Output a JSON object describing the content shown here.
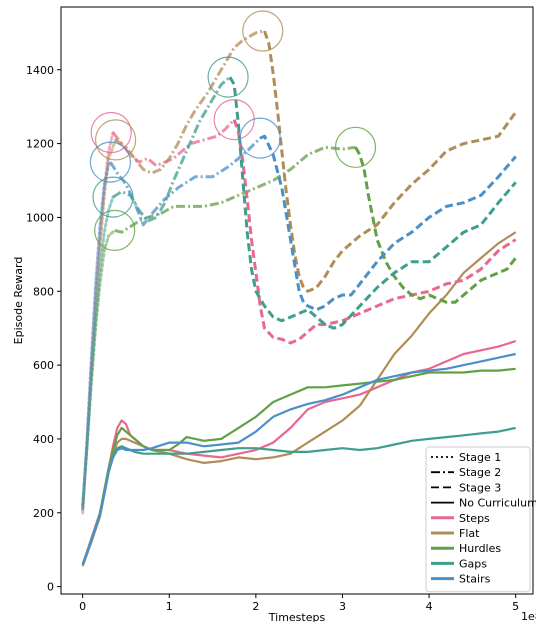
{
  "chart_data": {
    "type": "line",
    "xlabel": "Timesteps",
    "ylabel": "Episode Reward",
    "x_scale_label": "1e8",
    "xlim": [
      -0.25,
      5.2
    ],
    "ylim": [
      -20,
      1570
    ],
    "x_ticks": [
      0,
      1,
      2,
      3,
      4,
      5
    ],
    "y_ticks": [
      0,
      200,
      400,
      600,
      800,
      1000,
      1200,
      1400
    ],
    "x_tick_labels": [
      "0",
      "1",
      "2",
      "3",
      "4",
      "5"
    ],
    "y_tick_labels": [
      "0",
      "200",
      "400",
      "600",
      "800",
      "1000",
      "1200",
      "1400"
    ],
    "grid": false,
    "legend_position": "bottom-right",
    "legend": {
      "styles": [
        {
          "label": "Stage 1",
          "dash": "dotted"
        },
        {
          "label": "Stage 2",
          "dash": "dashdot"
        },
        {
          "label": "Stage 3",
          "dash": "dashed"
        },
        {
          "label": "No Curriculum",
          "dash": "solid"
        }
      ],
      "colors": [
        {
          "label": "Steps",
          "color": "#e8688e"
        },
        {
          "label": "Flat",
          "color": "#b08d57"
        },
        {
          "label": "Hurdles",
          "color": "#62a046"
        },
        {
          "label": "Gaps",
          "color": "#3f9e8e"
        },
        {
          "label": "Stairs",
          "color": "#4b8fc8"
        }
      ]
    },
    "series": [
      {
        "terrain": "Steps",
        "stage": 1,
        "color": "#e8688e",
        "x": [
          0,
          0.05,
          0.1,
          0.15,
          0.2,
          0.25,
          0.3,
          0.35
        ],
        "y": [
          200,
          390,
          600,
          790,
          950,
          1080,
          1180,
          1230
        ]
      },
      {
        "terrain": "Flat",
        "stage": 1,
        "color": "#b08d57",
        "x": [
          0,
          0.05,
          0.1,
          0.15,
          0.2,
          0.25,
          0.3,
          0.38
        ],
        "y": [
          210,
          380,
          570,
          760,
          920,
          1060,
          1160,
          1210
        ]
      },
      {
        "terrain": "Hurdles",
        "stage": 1,
        "color": "#62a046",
        "x": [
          0,
          0.05,
          0.1,
          0.15,
          0.2,
          0.25,
          0.3,
          0.37
        ],
        "y": [
          220,
          380,
          550,
          700,
          820,
          910,
          950,
          965
        ]
      },
      {
        "terrain": "Gaps",
        "stage": 1,
        "color": "#3f9e8e",
        "x": [
          0,
          0.05,
          0.1,
          0.15,
          0.2,
          0.25,
          0.3,
          0.35
        ],
        "y": [
          220,
          380,
          560,
          720,
          860,
          960,
          1020,
          1055
        ]
      },
      {
        "terrain": "Stairs",
        "stage": 1,
        "color": "#4b8fc8",
        "x": [
          0,
          0.05,
          0.1,
          0.15,
          0.2,
          0.25,
          0.3,
          0.32
        ],
        "y": [
          210,
          400,
          620,
          820,
          980,
          1090,
          1140,
          1150
        ]
      },
      {
        "terrain": "Steps",
        "stage": 2,
        "color": "#e8688e",
        "x": [
          0.35,
          0.45,
          0.55,
          0.65,
          0.75,
          0.85,
          0.95,
          1.05,
          1.15,
          1.25,
          1.4,
          1.55,
          1.65,
          1.75
        ],
        "y": [
          1230,
          1200,
          1170,
          1150,
          1160,
          1140,
          1150,
          1160,
          1180,
          1200,
          1210,
          1220,
          1240,
          1265
        ]
      },
      {
        "terrain": "Flat",
        "stage": 2,
        "color": "#b08d57",
        "x": [
          0.38,
          0.5,
          0.6,
          0.7,
          0.8,
          0.9,
          1.0,
          1.1,
          1.2,
          1.3,
          1.45,
          1.6,
          1.75,
          1.85,
          2.0,
          2.1
        ],
        "y": [
          1210,
          1190,
          1160,
          1130,
          1120,
          1130,
          1160,
          1200,
          1250,
          1290,
          1340,
          1400,
          1460,
          1480,
          1500,
          1505
        ]
      },
      {
        "terrain": "Hurdles",
        "stage": 2,
        "color": "#62a046",
        "x": [
          0.37,
          0.45,
          0.55,
          0.65,
          0.75,
          0.9,
          1.05,
          1.2,
          1.4,
          1.6,
          1.8,
          2.0,
          2.2,
          2.4,
          2.6,
          2.8,
          3.0,
          3.15
        ],
        "y": [
          965,
          960,
          975,
          990,
          1000,
          1010,
          1030,
          1030,
          1030,
          1040,
          1060,
          1080,
          1100,
          1130,
          1170,
          1190,
          1185,
          1190
        ]
      },
      {
        "terrain": "Gaps",
        "stage": 2,
        "color": "#3f9e8e",
        "x": [
          0.35,
          0.45,
          0.55,
          0.65,
          0.75,
          0.85,
          0.95,
          1.05,
          1.2,
          1.35,
          1.5,
          1.6,
          1.7
        ],
        "y": [
          1055,
          1070,
          1060,
          1020,
          990,
          1000,
          1040,
          1100,
          1180,
          1260,
          1320,
          1360,
          1380
        ]
      },
      {
        "terrain": "Stairs",
        "stage": 2,
        "color": "#4b8fc8",
        "x": [
          0.32,
          0.4,
          0.5,
          0.6,
          0.7,
          0.8,
          0.95,
          1.1,
          1.3,
          1.5,
          1.7,
          1.9,
          2.05
        ],
        "y": [
          1150,
          1120,
          1090,
          1040,
          980,
          1010,
          1050,
          1080,
          1110,
          1110,
          1140,
          1180,
          1215
        ]
      },
      {
        "terrain": "Steps",
        "stage": 3,
        "color": "#e8688e",
        "x": [
          1.75,
          1.8,
          1.85,
          1.9,
          1.95,
          2.0,
          2.05,
          2.1,
          2.2,
          2.3,
          2.4,
          2.5,
          2.6,
          2.7,
          2.8,
          3.0,
          3.2,
          3.4,
          3.6,
          3.8,
          4.0,
          4.2,
          4.4,
          4.6,
          4.8,
          5.0
        ],
        "y": [
          1265,
          1230,
          1150,
          1050,
          940,
          850,
          760,
          700,
          675,
          670,
          660,
          670,
          690,
          710,
          710,
          720,
          740,
          760,
          780,
          790,
          800,
          820,
          830,
          860,
          910,
          940
        ]
      },
      {
        "terrain": "Flat",
        "stage": 3,
        "color": "#b08d57",
        "x": [
          2.1,
          2.15,
          2.2,
          2.25,
          2.3,
          2.35,
          2.4,
          2.45,
          2.5,
          2.55,
          2.6,
          2.7,
          2.8,
          2.9,
          3.0,
          3.2,
          3.4,
          3.6,
          3.8,
          4.0,
          4.2,
          4.4,
          4.6,
          4.8,
          5.0
        ],
        "y": [
          1505,
          1470,
          1390,
          1290,
          1180,
          1070,
          980,
          900,
          840,
          810,
          800,
          810,
          840,
          880,
          910,
          950,
          980,
          1040,
          1090,
          1130,
          1180,
          1200,
          1210,
          1220,
          1285
        ]
      },
      {
        "terrain": "Hurdles",
        "stage": 3,
        "color": "#62a046",
        "x": [
          3.15,
          3.2,
          3.25,
          3.3,
          3.35,
          3.4,
          3.5,
          3.6,
          3.7,
          3.8,
          3.9,
          4.0,
          4.1,
          4.2,
          4.3,
          4.4,
          4.5,
          4.6,
          4.7,
          4.8,
          4.9,
          5.0
        ],
        "y": [
          1190,
          1170,
          1130,
          1060,
          1000,
          940,
          880,
          840,
          810,
          790,
          780,
          790,
          780,
          770,
          770,
          790,
          810,
          830,
          840,
          850,
          860,
          890
        ]
      },
      {
        "terrain": "Gaps",
        "stage": 3,
        "color": "#3f9e8e",
        "x": [
          1.7,
          1.75,
          1.8,
          1.85,
          1.9,
          1.95,
          2.0,
          2.1,
          2.2,
          2.3,
          2.4,
          2.5,
          2.6,
          2.7,
          2.8,
          2.9,
          3.0,
          3.2,
          3.4,
          3.6,
          3.8,
          4.0,
          4.2,
          4.4,
          4.6,
          4.8,
          5.0
        ],
        "y": [
          1380,
          1360,
          1250,
          1100,
          960,
          860,
          800,
          760,
          730,
          720,
          730,
          740,
          750,
          730,
          710,
          700,
          710,
          760,
          810,
          850,
          880,
          880,
          920,
          960,
          980,
          1040,
          1095
        ]
      },
      {
        "terrain": "Stairs",
        "stage": 3,
        "color": "#4b8fc8",
        "x": [
          2.05,
          2.1,
          2.2,
          2.3,
          2.35,
          2.4,
          2.45,
          2.5,
          2.55,
          2.6,
          2.7,
          2.8,
          2.9,
          3.0,
          3.1,
          3.2,
          3.4,
          3.6,
          3.8,
          4.0,
          4.2,
          4.4,
          4.6,
          4.8,
          5.0
        ],
        "y": [
          1215,
          1220,
          1170,
          1080,
          1010,
          940,
          870,
          800,
          770,
          760,
          750,
          760,
          780,
          790,
          790,
          820,
          880,
          930,
          960,
          1000,
          1030,
          1040,
          1060,
          1110,
          1165
        ]
      },
      {
        "terrain": "Steps",
        "stage": 0,
        "color": "#e8688e",
        "x": [
          0,
          0.1,
          0.2,
          0.25,
          0.3,
          0.35,
          0.4,
          0.45,
          0.5,
          0.55,
          0.6,
          0.7,
          0.8,
          1.0,
          1.2,
          1.4,
          1.6,
          1.8,
          2.0,
          2.2,
          2.4,
          2.6,
          2.8,
          3.0,
          3.2,
          3.4,
          3.6,
          3.8,
          4.0,
          4.2,
          4.4,
          4.6,
          4.8,
          5.0
        ],
        "y": [
          60,
          130,
          200,
          260,
          320,
          380,
          430,
          450,
          440,
          410,
          400,
          380,
          370,
          370,
          360,
          355,
          350,
          360,
          370,
          390,
          430,
          480,
          500,
          510,
          520,
          540,
          560,
          580,
          590,
          610,
          630,
          640,
          650,
          665
        ]
      },
      {
        "terrain": "Flat",
        "stage": 0,
        "color": "#b08d57",
        "x": [
          0,
          0.1,
          0.2,
          0.25,
          0.3,
          0.35,
          0.4,
          0.45,
          0.5,
          0.6,
          0.7,
          0.8,
          1.0,
          1.2,
          1.4,
          1.6,
          1.8,
          2.0,
          2.2,
          2.4,
          2.6,
          2.8,
          3.0,
          3.2,
          3.4,
          3.6,
          3.8,
          4.0,
          4.2,
          4.4,
          4.6,
          4.8,
          5.0
        ],
        "y": [
          55,
          120,
          190,
          250,
          310,
          360,
          390,
          400,
          400,
          390,
          380,
          370,
          360,
          345,
          335,
          340,
          350,
          345,
          350,
          360,
          390,
          420,
          450,
          490,
          560,
          630,
          680,
          740,
          790,
          850,
          890,
          930,
          960
        ]
      },
      {
        "terrain": "Hurdles",
        "stage": 0,
        "color": "#62a046",
        "x": [
          0,
          0.1,
          0.2,
          0.25,
          0.3,
          0.35,
          0.4,
          0.45,
          0.5,
          0.6,
          0.7,
          0.8,
          1.0,
          1.1,
          1.2,
          1.4,
          1.6,
          1.8,
          2.0,
          2.2,
          2.4,
          2.6,
          2.8,
          3.0,
          3.2,
          3.4,
          3.6,
          3.8,
          4.0,
          4.2,
          4.4,
          4.6,
          4.8,
          5.0
        ],
        "y": [
          60,
          125,
          200,
          260,
          320,
          370,
          410,
          430,
          420,
          400,
          380,
          370,
          370,
          385,
          405,
          395,
          400,
          430,
          460,
          500,
          520,
          540,
          540,
          545,
          550,
          555,
          560,
          570,
          580,
          580,
          580,
          585,
          585,
          590
        ]
      },
      {
        "terrain": "Gaps",
        "stage": 0,
        "color": "#3f9e8e",
        "x": [
          0,
          0.1,
          0.2,
          0.25,
          0.3,
          0.35,
          0.4,
          0.45,
          0.5,
          0.6,
          0.7,
          0.8,
          1.0,
          1.2,
          1.4,
          1.6,
          1.8,
          2.0,
          2.2,
          2.4,
          2.6,
          2.8,
          3.0,
          3.2,
          3.4,
          3.6,
          3.8,
          4.0,
          4.2,
          4.4,
          4.6,
          4.8,
          5.0
        ],
        "y": [
          60,
          125,
          195,
          250,
          310,
          350,
          375,
          380,
          375,
          365,
          360,
          360,
          360,
          360,
          365,
          370,
          375,
          375,
          370,
          365,
          365,
          370,
          375,
          370,
          375,
          385,
          395,
          400,
          405,
          410,
          415,
          420,
          430
        ]
      },
      {
        "terrain": "Stairs",
        "stage": 0,
        "color": "#4b8fc8",
        "x": [
          0,
          0.1,
          0.2,
          0.25,
          0.3,
          0.35,
          0.4,
          0.45,
          0.5,
          0.6,
          0.7,
          0.8,
          1.0,
          1.2,
          1.4,
          1.6,
          1.8,
          2.0,
          2.2,
          2.4,
          2.6,
          2.8,
          3.0,
          3.2,
          3.4,
          3.6,
          3.8,
          4.0,
          4.2,
          4.4,
          4.6,
          4.8,
          5.0
        ],
        "y": [
          60,
          125,
          195,
          250,
          310,
          350,
          370,
          375,
          370,
          370,
          370,
          375,
          390,
          390,
          380,
          385,
          390,
          420,
          460,
          480,
          495,
          505,
          520,
          540,
          560,
          570,
          580,
          585,
          590,
          600,
          610,
          620,
          630
        ]
      }
    ],
    "circles": [
      {
        "terrain": "Steps",
        "color": "#e8688e",
        "x": 0.33,
        "y": 1230
      },
      {
        "terrain": "Flat",
        "color": "#b08d57",
        "x": 0.38,
        "y": 1210
      },
      {
        "terrain": "Stairs",
        "color": "#4b8fc8",
        "x": 0.32,
        "y": 1150
      },
      {
        "terrain": "Gaps",
        "color": "#3f9e8e",
        "x": 0.35,
        "y": 1055
      },
      {
        "terrain": "Hurdles",
        "color": "#62a046",
        "x": 0.37,
        "y": 965
      },
      {
        "terrain": "Gaps",
        "color": "#3f9e8e",
        "x": 1.68,
        "y": 1380
      },
      {
        "terrain": "Steps",
        "color": "#e8688e",
        "x": 1.75,
        "y": 1265
      },
      {
        "terrain": "Flat",
        "color": "#b08d57",
        "x": 2.08,
        "y": 1505
      },
      {
        "terrain": "Stairs",
        "color": "#4b8fc8",
        "x": 2.05,
        "y": 1215
      },
      {
        "terrain": "Hurdles",
        "color": "#62a046",
        "x": 3.15,
        "y": 1190
      }
    ]
  }
}
